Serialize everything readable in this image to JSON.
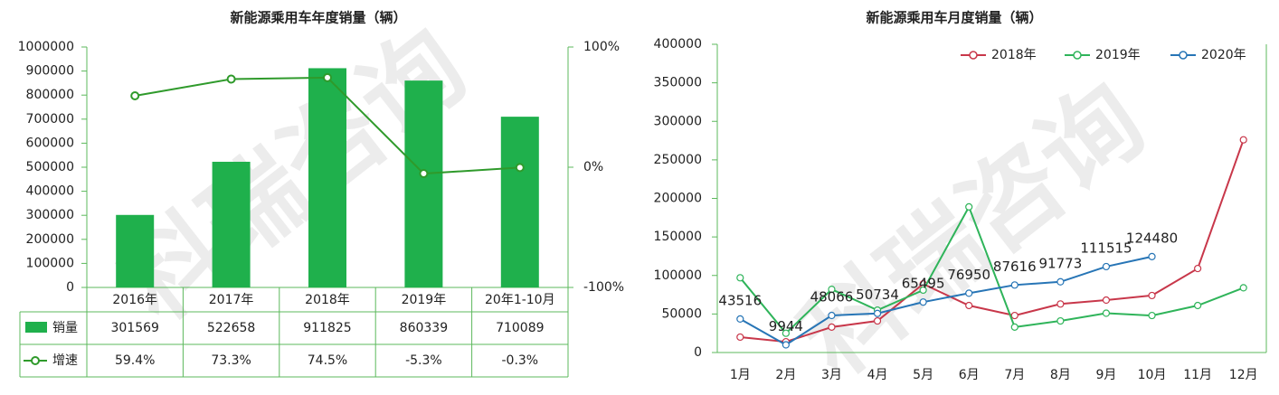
{
  "watermark": "科瑞咨询",
  "chart_data": [
    {
      "type": "bar",
      "title": "新能源乘用车年度销量（辆）",
      "categories": [
        "2016年",
        "2017年",
        "2018年",
        "2019年",
        "20年1-10月"
      ],
      "series": [
        {
          "name": "销量",
          "type": "bar",
          "color": "#1fb04c",
          "values": [
            301569,
            522658,
            911825,
            860339,
            710089
          ]
        },
        {
          "name": "增速",
          "type": "line",
          "axis": "y2",
          "color": "#2f9a2b",
          "values": [
            59.4,
            73.3,
            74.5,
            -5.3,
            -0.3
          ],
          "value_labels": [
            "59.4%",
            "73.3%",
            "74.5%",
            "-5.3%",
            "-0.3%"
          ]
        }
      ],
      "ylim": [
        0,
        1000000
      ],
      "yticks": [
        0,
        100000,
        200000,
        300000,
        400000,
        500000,
        600000,
        700000,
        800000,
        900000,
        1000000
      ],
      "y2lim": [
        -100,
        100
      ],
      "y2ticks": [
        {
          "value": -100,
          "label": "-100%"
        },
        {
          "value": 0,
          "label": "0%"
        },
        {
          "value": 100,
          "label": "100%"
        }
      ]
    },
    {
      "type": "line",
      "title": "新能源乘用车月度销量（辆）",
      "categories": [
        "1月",
        "2月",
        "3月",
        "4月",
        "5月",
        "6月",
        "7月",
        "8月",
        "9月",
        "10月",
        "11月",
        "12月"
      ],
      "series": [
        {
          "name": "2018年",
          "color": "#c8374a",
          "values": [
            20000,
            14000,
            33000,
            41000,
            89000,
            61000,
            48000,
            63000,
            68000,
            74000,
            109000,
            276000
          ]
        },
        {
          "name": "2019年",
          "color": "#2fb45a",
          "values": [
            97000,
            25000,
            82000,
            55000,
            81000,
            189000,
            33000,
            41000,
            51000,
            48000,
            61000,
            84000
          ]
        },
        {
          "name": "2020年",
          "color": "#2775b6",
          "values": [
            43516,
            9944,
            48066,
            50734,
            65495,
            76950,
            87616,
            91773,
            111515,
            124480,
            null,
            null
          ],
          "data_labels": true
        }
      ],
      "ylim": [
        0,
        400000
      ],
      "yticks": [
        0,
        50000,
        100000,
        150000,
        200000,
        250000,
        300000,
        350000,
        400000
      ],
      "legend": "top"
    }
  ]
}
